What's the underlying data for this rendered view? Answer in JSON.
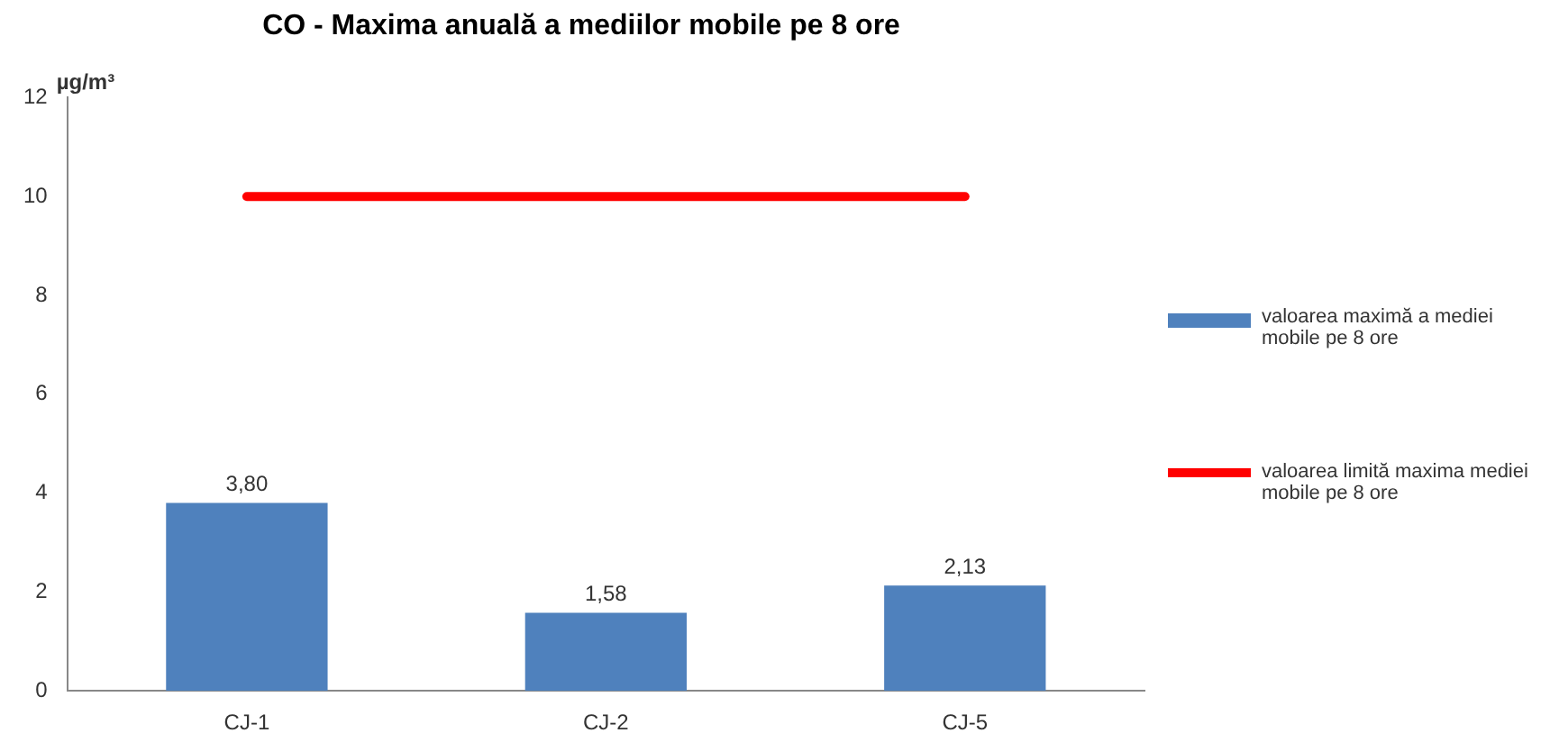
{
  "chart_data": {
    "type": "bar",
    "title": "CO - Maxima anuală a mediilor mobile pe 8 ore",
    "ylabel": "µg/m³",
    "categories": [
      "CJ-1",
      "CJ-2",
      "CJ-5"
    ],
    "series": [
      {
        "name": "valoarea maximă a mediei mobile pe 8 ore",
        "color": "#4f81bd",
        "values": [
          3.8,
          1.58,
          2.13
        ],
        "value_labels": [
          "3,80",
          "1,58",
          "2,13"
        ]
      },
      {
        "name": "valoarea limită maxima mediei mobile pe 8 ore",
        "type": "line",
        "color": "#ff0000",
        "values": [
          10,
          10,
          10
        ]
      }
    ],
    "ylim": [
      0,
      12
    ],
    "yticks": [
      0,
      2,
      4,
      6,
      8,
      10,
      12
    ],
    "grid": false,
    "legend": "right",
    "marker": "none"
  }
}
